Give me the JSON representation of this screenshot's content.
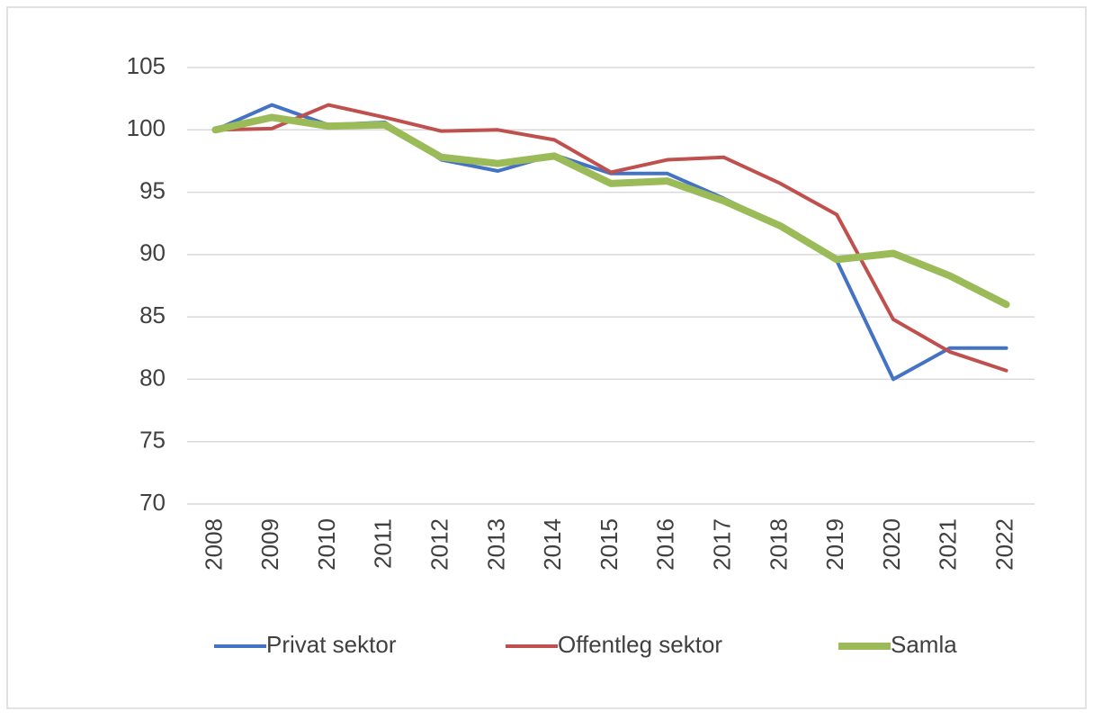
{
  "chart_data": {
    "type": "line",
    "categories": [
      "2008",
      "2009",
      "2010",
      "2011",
      "2012",
      "2013",
      "2014",
      "2015",
      "2016",
      "2017",
      "2018",
      "2019",
      "2020",
      "2021",
      "2022"
    ],
    "series": [
      {
        "name": "Privat sektor",
        "color": "#4472c4",
        "values": [
          100,
          102.0,
          100.4,
          100.6,
          97.6,
          96.7,
          98.0,
          96.5,
          96.5,
          94.5,
          92.3,
          89.5,
          80.0,
          82.5,
          82.5
        ]
      },
      {
        "name": "Offentleg sektor",
        "color": "#c0504d",
        "values": [
          100,
          100.1,
          102.0,
          101.0,
          99.9,
          100.0,
          99.2,
          96.6,
          97.6,
          97.8,
          95.7,
          93.2,
          84.8,
          82.2,
          80.7
        ]
      },
      {
        "name": "Samla",
        "color": "#9bbb59",
        "values": [
          100,
          101.0,
          100.3,
          100.4,
          97.8,
          97.3,
          97.9,
          95.7,
          95.9,
          94.3,
          92.3,
          89.6,
          90.1,
          88.3,
          86.0
        ]
      }
    ],
    "ylim": [
      70,
      105
    ],
    "yticks": [
      70,
      75,
      80,
      85,
      90,
      95,
      100,
      105
    ],
    "grid": true,
    "legend": "bottom"
  }
}
